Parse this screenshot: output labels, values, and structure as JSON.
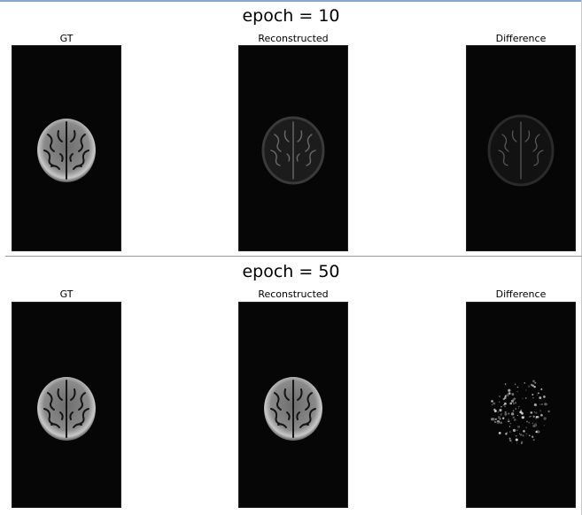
{
  "rows": [
    {
      "title": "epoch = 10",
      "panels": [
        {
          "label": "GT",
          "kind": "brain-clear"
        },
        {
          "label": "Reconstructed",
          "kind": "brain-faint"
        },
        {
          "label": "Difference",
          "kind": "brain-faint-diff"
        }
      ]
    },
    {
      "title": "epoch = 50",
      "panels": [
        {
          "label": "GT",
          "kind": "brain-clear"
        },
        {
          "label": "Reconstructed",
          "kind": "brain-clear"
        },
        {
          "label": "Difference",
          "kind": "speckle"
        }
      ]
    }
  ]
}
